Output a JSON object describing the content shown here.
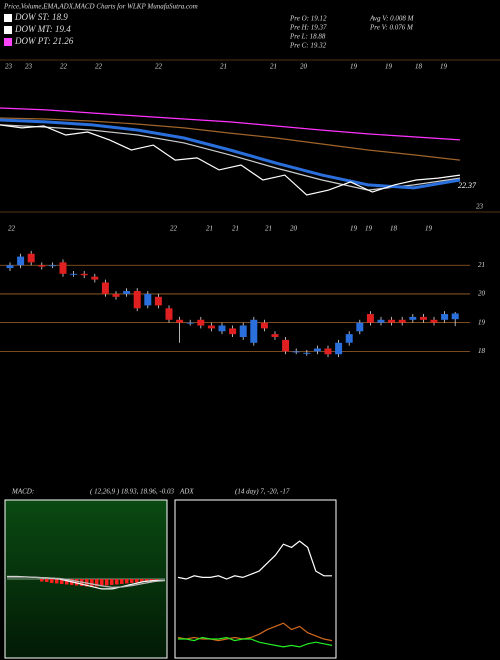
{
  "header": {
    "title": "Price,Volume,EMA,ADX,MACD Charts for WLKP MunafaSutra.com",
    "legend": [
      {
        "label": "DOW ST: 18.9",
        "color": "#ffffff"
      },
      {
        "label": "DOW MT: 19.4",
        "color": "#ffffff"
      },
      {
        "label": "DOW PT: 21.26",
        "color": "#ff44ff"
      }
    ],
    "info": [
      "Pre  O: 19.12",
      "Pre  H: 19.37",
      "Pre  L: 18.88",
      "Pre  C: 19.32",
      "Avg  V: 0.008  M",
      "Pre  V: 0.076  M"
    ]
  },
  "chart_data": [
    {
      "type": "line",
      "ylim": [
        0,
        100
      ],
      "date_labels": [
        "23",
        "23",
        "22",
        "22",
        "22",
        "21",
        "21",
        "20",
        "19",
        "19",
        "18",
        "19"
      ],
      "annotations": [
        "22.37",
        "23"
      ],
      "series": [
        {
          "color": "#ff33ff",
          "values": [
            68,
            66.7,
            64.7,
            62.7,
            60.7,
            58.7,
            56,
            53.3,
            50.7,
            48.7,
            46.7
          ]
        },
        {
          "color": "#a0642a",
          "values": [
            61.3,
            60.7,
            59.3,
            57.3,
            54.7,
            51.3,
            48,
            44,
            40,
            36.7,
            33.3
          ]
        },
        {
          "color": "#cccccc",
          "values": [
            56.7,
            55.3,
            53.3,
            50,
            44.7,
            36.7,
            28,
            20,
            13.3,
            16.7,
            21.3
          ]
        },
        {
          "color": "#2a6fdb",
          "values": [
            60,
            58.7,
            56.7,
            53.3,
            48,
            40,
            31.3,
            23.3,
            16.7,
            14.7,
            20
          ]
        },
        {
          "color": "#ffffff",
          "values": [
            56.7,
            54.7,
            56,
            50,
            52,
            46.7,
            40,
            43.3,
            33.3,
            34.7,
            26.7,
            30,
            20,
            23.3,
            10,
            13.3,
            18.7,
            12,
            16.7,
            20,
            21.3,
            23.3
          ]
        }
      ]
    },
    {
      "type": "candlestick",
      "ylim": [
        17.7,
        22.4
      ],
      "yticks": [
        18,
        19,
        20,
        21
      ],
      "up_color": "#2a6fdb",
      "down_color": "#e02020",
      "date_labels": [
        "22",
        "22",
        "21",
        "21",
        "21",
        "20",
        "19",
        "19",
        "18",
        "19"
      ],
      "open": [
        20.9,
        21.0,
        21.4,
        21.0,
        21.0,
        21.1,
        20.7,
        20.7,
        20.6,
        20.4,
        20.0,
        20.0,
        20.1,
        19.6,
        19.9,
        19.5,
        19.1,
        19.0,
        19.1,
        18.9,
        18.7,
        18.8,
        18.5,
        18.3,
        19.0,
        18.6,
        18.4,
        18.0,
        17.95,
        18.0,
        18.1,
        17.9,
        18.3,
        18.7,
        19.3,
        19.0,
        19.1,
        19.1,
        19.1,
        19.2,
        19.1,
        19.1,
        19.12
      ],
      "high": [
        21.1,
        21.4,
        21.5,
        21.1,
        21.1,
        21.2,
        20.8,
        20.8,
        20.7,
        20.5,
        20.1,
        20.2,
        20.2,
        20.1,
        20.0,
        19.6,
        19.2,
        19.1,
        19.2,
        19.0,
        19.0,
        18.9,
        19.0,
        19.2,
        19.1,
        18.7,
        18.5,
        18.1,
        18.05,
        18.2,
        18.2,
        18.4,
        18.7,
        19.1,
        19.4,
        19.2,
        19.2,
        19.2,
        19.3,
        19.3,
        19.2,
        19.4,
        19.37
      ],
      "low": [
        20.8,
        20.9,
        21.0,
        20.85,
        20.9,
        20.6,
        20.6,
        20.55,
        20.4,
        19.9,
        19.8,
        19.9,
        19.4,
        19.5,
        19.5,
        19.0,
        18.3,
        18.9,
        18.8,
        18.7,
        18.6,
        18.5,
        18.4,
        18.2,
        18.7,
        18.4,
        17.9,
        17.9,
        17.85,
        17.9,
        17.8,
        17.8,
        18.2,
        18.6,
        18.9,
        18.9,
        18.9,
        18.9,
        19.0,
        19.0,
        18.9,
        19.0,
        18.88
      ],
      "close": [
        21.0,
        21.3,
        21.1,
        20.95,
        21.0,
        20.7,
        20.7,
        20.65,
        20.5,
        20.0,
        19.9,
        20.1,
        19.5,
        20.0,
        19.6,
        19.1,
        19.0,
        19.0,
        18.9,
        18.8,
        18.9,
        18.6,
        18.9,
        19.1,
        18.8,
        18.5,
        18.0,
        18.0,
        17.95,
        18.1,
        17.9,
        18.3,
        18.6,
        19.0,
        19.0,
        19.1,
        19.0,
        19.0,
        19.2,
        19.1,
        19.0,
        19.3,
        19.32
      ]
    },
    {
      "type": "macd",
      "title": "MACD:",
      "subtitle": "( 12,26,9 ) 18.93, 18.96, -0.03",
      "ylim": [
        -1.6,
        1.6
      ],
      "bar_color": "#ff2020",
      "histogram": [
        -0.05,
        -0.06,
        -0.08,
        -0.09,
        -0.1,
        -0.11,
        -0.12,
        -0.13,
        -0.14,
        -0.15,
        -0.15,
        -0.15,
        -0.14,
        -0.13,
        -0.12,
        -0.11,
        -0.1,
        -0.09,
        -0.08,
        -0.07,
        -0.06,
        -0.05,
        -0.05,
        -0.04
      ],
      "series": [
        {
          "color": "#ffffff",
          "values": [
            0.05,
            0.05,
            0.04,
            0.03,
            0.02,
            0,
            -0.05,
            -0.1,
            -0.15,
            -0.2,
            -0.2,
            -0.15,
            -0.1,
            -0.05,
            -0.03,
            -0.03
          ]
        },
        {
          "color": "#bbbbbb",
          "values": [
            0.04,
            0.04,
            0.04,
            0.03,
            0.02,
            0.01,
            -0.02,
            -0.06,
            -0.1,
            -0.14,
            -0.17,
            -0.16,
            -0.13,
            -0.09,
            -0.05,
            -0.03
          ]
        }
      ]
    },
    {
      "type": "line",
      "title": "ADX",
      "subtitle": "(14  day) 7, -20, -17",
      "ylim": [
        0,
        100
      ],
      "series": [
        {
          "color": "#ffffff",
          "values": [
            51,
            50,
            52,
            51,
            51,
            52,
            50,
            52,
            51,
            53,
            55,
            60,
            65,
            72,
            70,
            74,
            70,
            55,
            52,
            52
          ]
        },
        {
          "color": "#d2691e",
          "values": [
            13,
            12,
            13,
            12,
            12,
            11,
            12,
            13,
            12,
            13,
            15,
            18,
            20,
            22,
            18,
            20,
            16,
            14,
            12,
            11
          ]
        },
        {
          "color": "#22ee22",
          "values": [
            12,
            12,
            11,
            13,
            12,
            12,
            13,
            11,
            12,
            12,
            10,
            9,
            8,
            7,
            8,
            7,
            9,
            10,
            9,
            8
          ]
        }
      ]
    }
  ]
}
